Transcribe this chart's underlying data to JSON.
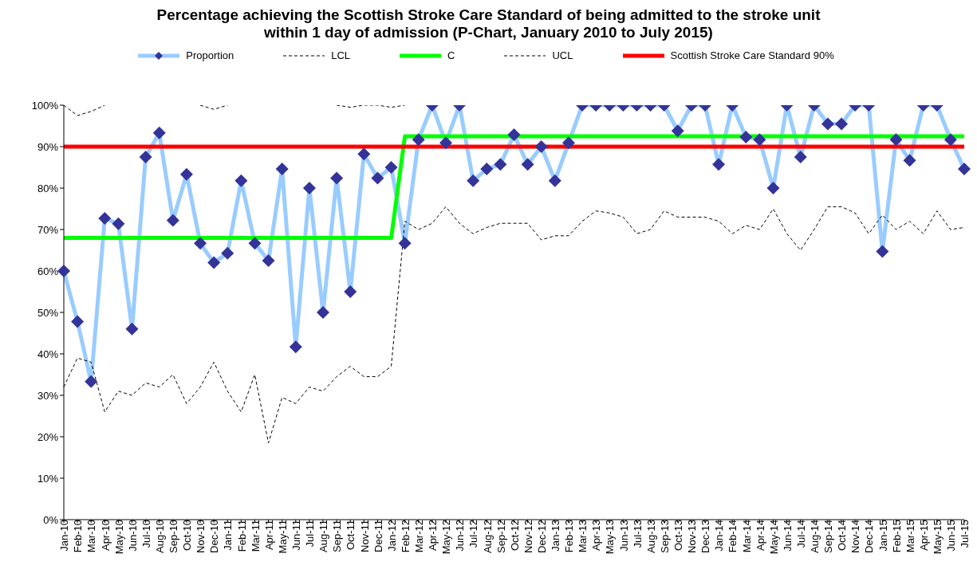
{
  "chart_data": {
    "type": "line",
    "title": "Percentage achieving the Scottish Stroke Care Standard of being admitted to the stroke unit within 1 day of admission (P-Chart, January 2010 to July 2015)",
    "categories": [
      "Jan-10",
      "Feb-10",
      "Mar-10",
      "Apr-10",
      "May-10",
      "Jun-10",
      "Jul-10",
      "Aug-10",
      "Sep-10",
      "Oct-10",
      "Nov-10",
      "Dec-10",
      "Jan-11",
      "Feb-11",
      "Mar-11",
      "Apr-11",
      "May-11",
      "Jun-11",
      "Jul-11",
      "Aug-11",
      "Sep-11",
      "Oct-11",
      "Nov-11",
      "Dec-11",
      "Jan-12",
      "Feb-12",
      "Mar-12",
      "Apr-12",
      "May-12",
      "Jun-12",
      "Jul-12",
      "Aug-12",
      "Sep-12",
      "Oct-12",
      "Nov-12",
      "Dec-12",
      "Jan-13",
      "Feb-13",
      "Mar-13",
      "Apr-13",
      "May-13",
      "Jun-13",
      "Jul-13",
      "Aug-13",
      "Sep-13",
      "Oct-13",
      "Nov-13",
      "Dec-13",
      "Jan-14",
      "Feb-14",
      "Mar-14",
      "Apr-14",
      "May-14",
      "Jun-14",
      "Jul-14",
      "Aug-14",
      "Sep-14",
      "Oct-14",
      "Nov-14",
      "Dec-14",
      "Jan-15",
      "Feb-15",
      "Mar-15",
      "Apr-15",
      "May-15",
      "Jun-15",
      "Jul-15"
    ],
    "series": [
      {
        "name": "Proportion",
        "color": "#99ccff",
        "marker": "diamond",
        "values": [
          60,
          47.8,
          33.3,
          72.7,
          71.4,
          46,
          87.5,
          93.3,
          72.2,
          83.3,
          66.7,
          62,
          64.3,
          81.8,
          66.7,
          62.5,
          84.6,
          41.7,
          80,
          50,
          82.4,
          55,
          88.2,
          82.4,
          85,
          66.7,
          91.7,
          100,
          90.9,
          100,
          81.8,
          84.6,
          85.7,
          92.9,
          85.7,
          90,
          81.8,
          90.9,
          100,
          100,
          100,
          100,
          100,
          100,
          100,
          93.8,
          100,
          100,
          85.7,
          100,
          92.3,
          91.7,
          80,
          100,
          87.5,
          100,
          95.5,
          95.5,
          100,
          100,
          64.7,
          91.7,
          86.7,
          100,
          100,
          91.7,
          84.6
        ]
      },
      {
        "name": "LCL",
        "color": "#000000",
        "line_style": "dashed",
        "values": [
          32,
          39,
          38,
          26,
          31,
          30,
          33,
          32,
          35,
          28,
          32,
          38,
          31,
          26,
          35,
          18.5,
          29.5,
          28,
          32,
          31,
          34.5,
          37,
          34.5,
          34.5,
          37,
          72,
          70,
          71.5,
          75.5,
          71.5,
          69,
          70.5,
          71.5,
          71.5,
          71.5,
          67.5,
          68.5,
          68.5,
          72,
          74.5,
          74,
          73,
          69,
          70,
          74.5,
          73,
          73,
          73,
          72,
          69,
          71,
          70,
          75,
          69,
          65,
          70,
          75.5,
          75.5,
          74,
          69,
          73.5,
          70,
          72,
          69,
          74.5,
          70,
          70.5
        ]
      },
      {
        "name": "C",
        "color": "#00ff00",
        "values": [
          68,
          68,
          68,
          68,
          68,
          68,
          68,
          68,
          68,
          68,
          68,
          68,
          68,
          68,
          68,
          68,
          68,
          68,
          68,
          68,
          68,
          68,
          68,
          68,
          68,
          92.5,
          92.5,
          92.5,
          92.5,
          92.5,
          92.5,
          92.5,
          92.5,
          92.5,
          92.5,
          92.5,
          92.5,
          92.5,
          92.5,
          92.5,
          92.5,
          92.5,
          92.5,
          92.5,
          92.5,
          92.5,
          92.5,
          92.5,
          92.5,
          92.5,
          92.5,
          92.5,
          92.5,
          92.5,
          92.5,
          92.5,
          92.5,
          92.5,
          92.5,
          92.5,
          92.5,
          92.5,
          92.5,
          92.5,
          92.5,
          92.5,
          92.5
        ]
      },
      {
        "name": "UCL",
        "color": "#000000",
        "line_style": "dashed",
        "values": [
          100,
          97.5,
          98.5,
          100,
          null,
          null,
          null,
          null,
          null,
          null,
          100,
          99,
          100,
          null,
          null,
          null,
          null,
          null,
          null,
          null,
          100,
          99.5,
          100,
          100,
          99.5,
          100,
          null,
          null,
          null,
          null,
          null,
          null,
          null,
          null,
          null,
          null,
          null,
          null,
          null,
          null,
          null,
          null,
          null,
          null,
          null,
          null,
          null,
          null,
          null,
          null,
          null,
          null,
          null,
          null,
          null,
          null,
          null,
          null,
          null,
          null,
          null,
          null,
          null,
          null,
          null,
          null,
          null
        ]
      },
      {
        "name": "Scottish Stroke Care Standard 90%",
        "color": "#ff0000",
        "values": [
          90,
          90,
          90,
          90,
          90,
          90,
          90,
          90,
          90,
          90,
          90,
          90,
          90,
          90,
          90,
          90,
          90,
          90,
          90,
          90,
          90,
          90,
          90,
          90,
          90,
          90,
          90,
          90,
          90,
          90,
          90,
          90,
          90,
          90,
          90,
          90,
          90,
          90,
          90,
          90,
          90,
          90,
          90,
          90,
          90,
          90,
          90,
          90,
          90,
          90,
          90,
          90,
          90,
          90,
          90,
          90,
          90,
          90,
          90,
          90,
          90,
          90,
          90,
          90,
          90,
          90,
          90
        ]
      }
    ],
    "ylim": [
      0,
      100
    ],
    "yticks": [
      {
        "value": 0,
        "label": "0%"
      },
      {
        "value": 10,
        "label": "10%"
      },
      {
        "value": 20,
        "label": "20%"
      },
      {
        "value": 30,
        "label": "30%"
      },
      {
        "value": 40,
        "label": "40%"
      },
      {
        "value": 50,
        "label": "50%"
      },
      {
        "value": 60,
        "label": "60%"
      },
      {
        "value": 70,
        "label": "70%"
      },
      {
        "value": 80,
        "label": "80%"
      },
      {
        "value": 90,
        "label": "90%"
      },
      {
        "value": 100,
        "label": "100%"
      }
    ],
    "grid": false,
    "legend": "top"
  }
}
